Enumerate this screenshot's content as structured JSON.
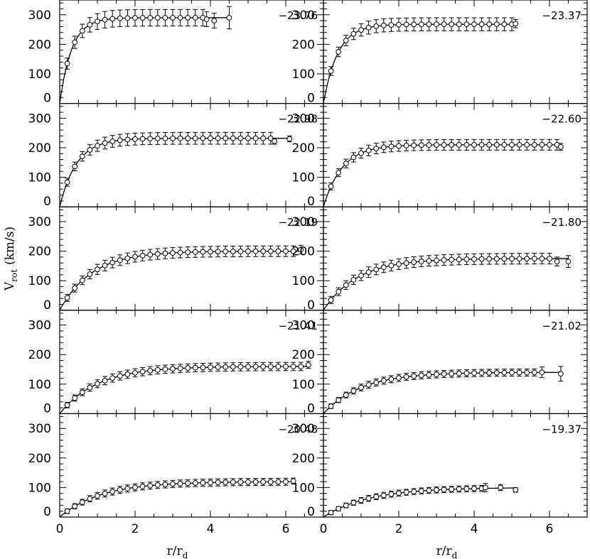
{
  "chart_data": {
    "type": "scatter",
    "layout": "5x2 grid of panels with shared axes",
    "xlabel": "r/r",
    "xlabel_sub": "d",
    "ylabel": "V",
    "ylabel_sub": "rot",
    "ylabel_suffix": "(km/s)",
    "xlim": [
      0,
      7
    ],
    "ylim": [
      0,
      350
    ],
    "x_ticks": [
      0,
      2,
      4,
      6
    ],
    "y_ticks": [
      0,
      100,
      200,
      300
    ],
    "grid": false,
    "markers": "open circles with vertical error bars, solid curve overlay",
    "panels": [
      {
        "label": "-23.76",
        "vmax": 290,
        "rt": 0.32,
        "rmax": 4.5,
        "err": 28,
        "tail": [
          [
            3.9,
            285,
            25
          ],
          [
            4.1,
            280,
            25
          ],
          [
            4.5,
            290,
            38
          ]
        ]
      },
      {
        "label": "-23.37",
        "vmax": 268,
        "rt": 0.38,
        "rmax": 5.1,
        "err": 22,
        "tail": [
          [
            5.1,
            270,
            14
          ]
        ]
      },
      {
        "label": "-22.98",
        "vmax": 232,
        "rt": 0.45,
        "rmax": 6.1,
        "err": 20,
        "tail": [
          [
            5.7,
            222,
            10
          ],
          [
            6.1,
            230,
            10
          ]
        ]
      },
      {
        "label": "-22.60",
        "vmax": 210,
        "rt": 0.5,
        "rmax": 6.3,
        "err": 18,
        "tail": [
          [
            6.3,
            203,
            12
          ]
        ]
      },
      {
        "label": "-22.19",
        "vmax": 200,
        "rt": 0.85,
        "rmax": 6.4,
        "err": 18,
        "tail": [
          [
            6.4,
            205,
            15
          ]
        ]
      },
      {
        "label": "-21.80",
        "vmax": 175,
        "rt": 0.9,
        "rmax": 6.5,
        "err": 18,
        "tail": [
          [
            6.2,
            165,
            15
          ],
          [
            6.5,
            165,
            20
          ]
        ]
      },
      {
        "label": "-21.41",
        "vmax": 160,
        "rt": 1.0,
        "rmax": 6.6,
        "err": 14,
        "tail": [
          [
            6.6,
            165,
            12
          ]
        ]
      },
      {
        "label": "-21.02",
        "vmax": 140,
        "rt": 1.0,
        "rmax": 6.3,
        "err": 12,
        "tail": [
          [
            5.8,
            140,
            18
          ],
          [
            6.3,
            135,
            25
          ]
        ]
      },
      {
        "label": "-20.48",
        "vmax": 120,
        "rt": 1.1,
        "rmax": 6.2,
        "err": 12,
        "tail": [
          [
            6.2,
            122,
            10
          ]
        ]
      },
      {
        "label": "-19.37",
        "vmax": 100,
        "rt": 1.2,
        "rmax": 5.1,
        "err": 10,
        "tail": [
          [
            4.3,
            100,
            14
          ],
          [
            4.7,
            100,
            10
          ],
          [
            5.1,
            92,
            8
          ]
        ]
      }
    ]
  }
}
